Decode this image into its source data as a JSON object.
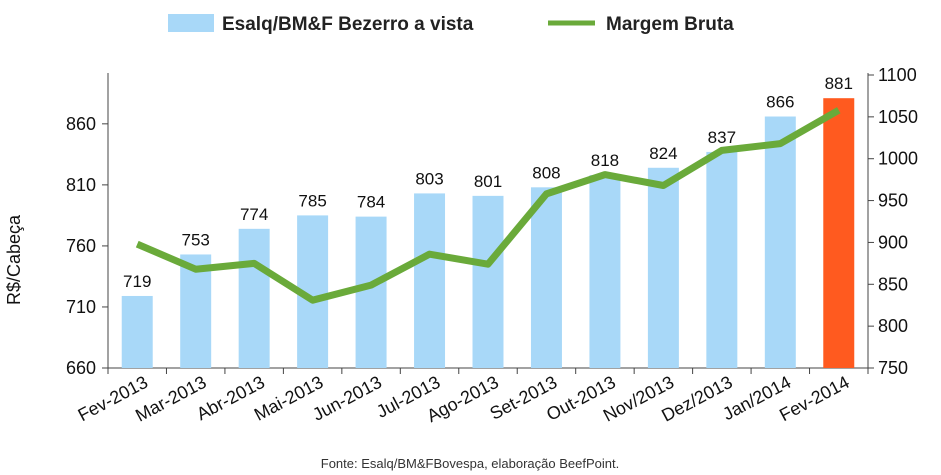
{
  "chart_data": {
    "type": "bar",
    "categories": [
      "Fev-2013",
      "Mar-2013",
      "Abr-2013",
      "Mai-2013",
      "Jun-2013",
      "Jul-2013",
      "Ago-2013",
      "Set-2013",
      "Out-2013",
      "Nov/2013",
      "Dez/2013",
      "Jan/2014",
      "Fev-2014"
    ],
    "series": [
      {
        "name": "Esalq/BM&F Bezerro a vista",
        "type": "bar",
        "axis": "left",
        "values": [
          719,
          753,
          774,
          785,
          784,
          803,
          801,
          808,
          818,
          824,
          837,
          866,
          881
        ],
        "color": "#a8d8f8",
        "highlight_index": 12,
        "highlight_color": "#ff5a1f"
      },
      {
        "name": "Margem Bruta",
        "type": "line",
        "axis": "right",
        "values": [
          898,
          868,
          875,
          831,
          849,
          886,
          874,
          958,
          981,
          968,
          1010,
          1018,
          1058
        ],
        "color": "#6aaa3a"
      }
    ],
    "ylabel": "R$/Cabeça",
    "ylim": [
      660,
      900
    ],
    "yticks": [
      660,
      710,
      760,
      810,
      860
    ],
    "y2lim": [
      750,
      1100
    ],
    "y2ticks": [
      750,
      800,
      850,
      900,
      950,
      1000,
      1050,
      1100
    ],
    "legend_position": "top-center",
    "grid": false,
    "source_note": "Fonte: Esalq/BM&FBovespa, elaboração BeefPoint."
  }
}
